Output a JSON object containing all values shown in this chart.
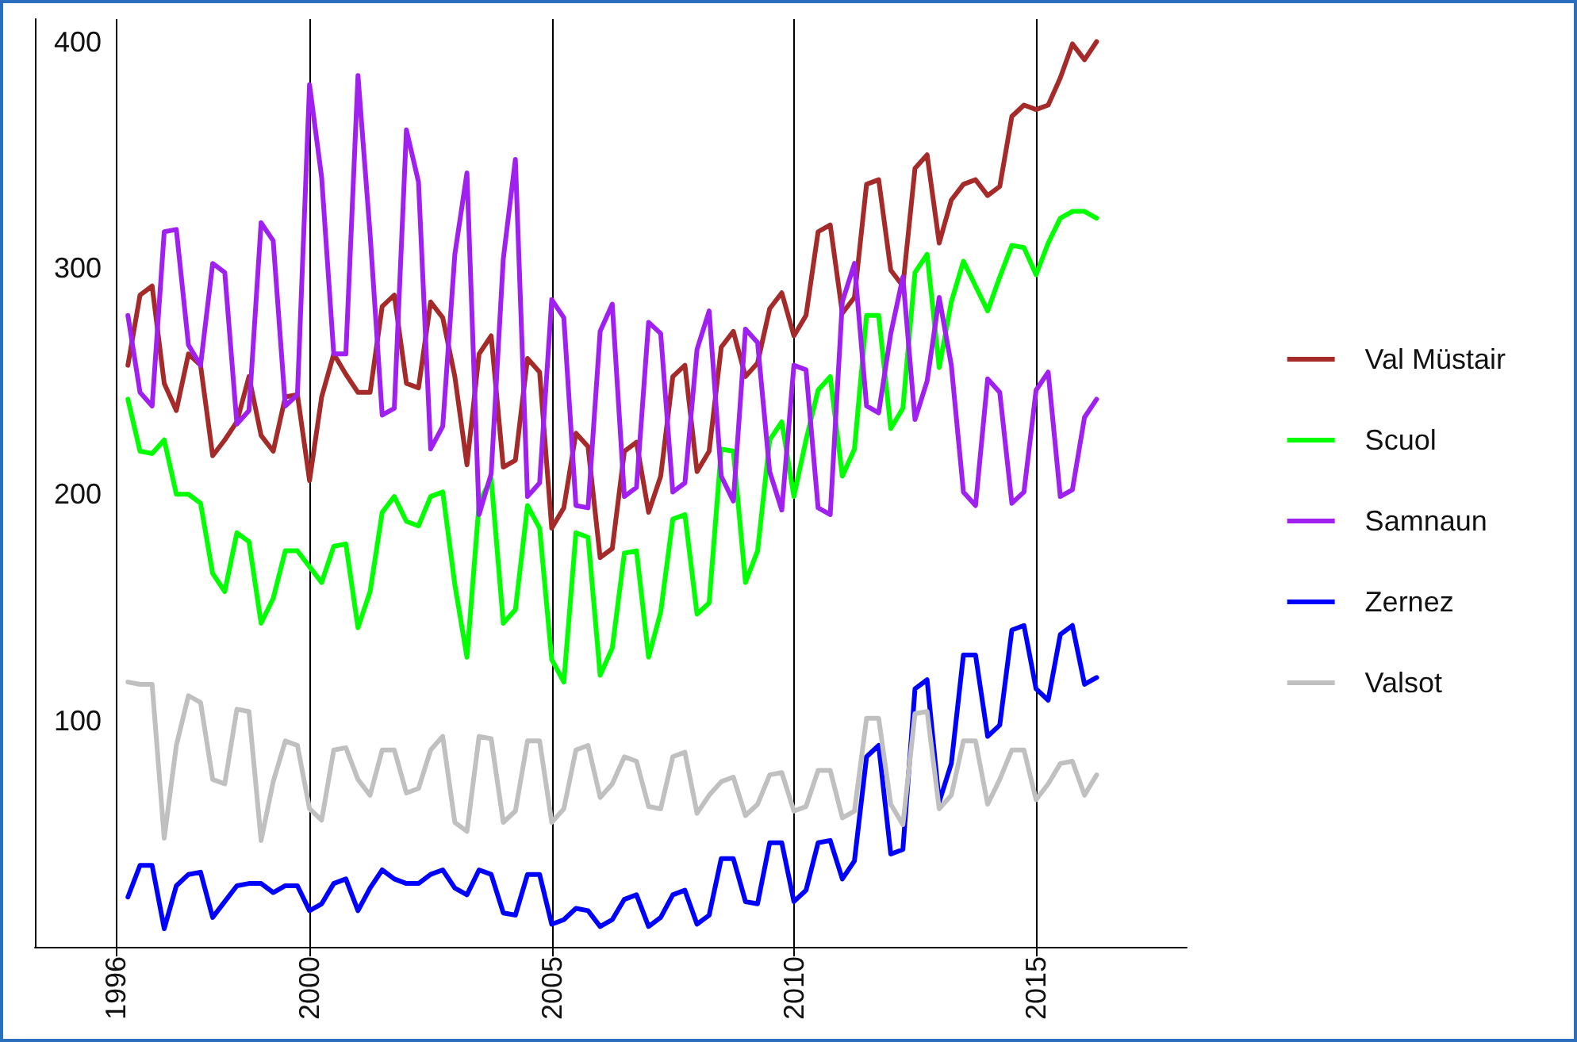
{
  "chart_data": {
    "type": "line",
    "x": [
      1996.25,
      1996.5,
      1996.75,
      1997,
      1997.25,
      1997.5,
      1997.75,
      1998,
      1998.25,
      1998.5,
      1998.75,
      1999,
      1999.25,
      1999.5,
      1999.75,
      2000,
      2000.25,
      2000.5,
      2000.75,
      2001,
      2001.25,
      2001.5,
      2001.75,
      2002,
      2002.25,
      2002.5,
      2002.75,
      2003,
      2003.25,
      2003.5,
      2003.75,
      2004,
      2004.25,
      2004.5,
      2004.75,
      2005,
      2005.25,
      2005.5,
      2005.75,
      2006,
      2006.25,
      2006.5,
      2006.75,
      2007,
      2007.25,
      2007.5,
      2007.75,
      2008,
      2008.25,
      2008.5,
      2008.75,
      2009,
      2009.25,
      2009.5,
      2009.75,
      2010,
      2010.25,
      2010.5,
      2010.75,
      2011,
      2011.25,
      2011.5,
      2011.75,
      2012,
      2012.25,
      2012.5,
      2012.75,
      2013,
      2013.25,
      2013.5,
      2013.75,
      2014,
      2014.25,
      2014.5,
      2014.75,
      2015,
      2015.25,
      2015.5,
      2015.75,
      2016,
      2016.25
    ],
    "series": [
      {
        "name": "Val Müstair",
        "color": "#a52a2a",
        "values": [
          257,
          288,
          292,
          249,
          237,
          262,
          257,
          217,
          224,
          232,
          252,
          226,
          219,
          243,
          244,
          206,
          243,
          262,
          253,
          245,
          245,
          283,
          288,
          249,
          247,
          285,
          278,
          252,
          213,
          262,
          270,
          212,
          215,
          260,
          254,
          185,
          194,
          227,
          221,
          172,
          176,
          219,
          223,
          192,
          208,
          252,
          257,
          210,
          219,
          265,
          272,
          252,
          258,
          282,
          289,
          270,
          279,
          316,
          319,
          280,
          287,
          337,
          339,
          299,
          292,
          344,
          350,
          311,
          330,
          337,
          339,
          332,
          336,
          367,
          372,
          370,
          372,
          384,
          399,
          392,
          400
        ]
      },
      {
        "name": "Scuol",
        "color": "#00ff00",
        "values": [
          242,
          219,
          218,
          224,
          200,
          200,
          196,
          165,
          157,
          183,
          179,
          143,
          154,
          175,
          175,
          168,
          161,
          177,
          178,
          141,
          157,
          192,
          199,
          188,
          186,
          199,
          201,
          160,
          128,
          196,
          207,
          143,
          149,
          195,
          185,
          127,
          117,
          183,
          181,
          120,
          132,
          174,
          175,
          128,
          148,
          189,
          191,
          147,
          152,
          220,
          219,
          161,
          175,
          224,
          232,
          199,
          224,
          246,
          252,
          208,
          220,
          279,
          279,
          229,
          238,
          298,
          306,
          256,
          285,
          303,
          292,
          281,
          296,
          310,
          309,
          297,
          311,
          322,
          325,
          325,
          322
        ]
      },
      {
        "name": "Samnaun",
        "color": "#a020f0",
        "values": [
          279,
          245,
          239,
          316,
          317,
          266,
          257,
          302,
          298,
          231,
          237,
          320,
          312,
          239,
          244,
          381,
          340,
          262,
          262,
          385,
          315,
          235,
          238,
          361,
          338,
          220,
          230,
          306,
          342,
          191,
          209,
          304,
          348,
          199,
          205,
          286,
          278,
          195,
          194,
          272,
          284,
          199,
          203,
          276,
          271,
          201,
          205,
          264,
          281,
          208,
          197,
          273,
          267,
          210,
          193,
          257,
          255,
          194,
          191,
          285,
          302,
          239,
          236,
          271,
          296,
          233,
          250,
          287,
          257,
          201,
          195,
          251,
          245,
          196,
          201,
          246,
          254,
          199,
          202,
          234,
          242
        ]
      },
      {
        "name": "Zernez",
        "color": "#0000ff",
        "values": [
          22,
          36,
          36,
          8,
          27,
          32,
          33,
          13,
          20,
          27,
          28,
          28,
          24,
          27,
          27,
          16,
          19,
          28,
          30,
          16,
          26,
          34,
          30,
          28,
          28,
          32,
          34,
          26,
          23,
          34,
          32,
          15,
          14,
          32,
          32,
          10,
          12,
          17,
          16,
          9,
          12,
          21,
          23,
          9,
          13,
          23,
          25,
          10,
          14,
          39,
          39,
          20,
          19,
          46,
          46,
          20,
          25,
          46,
          47,
          30,
          38,
          84,
          89,
          41,
          43,
          114,
          118,
          64,
          81,
          129,
          129,
          93,
          98,
          140,
          142,
          114,
          109,
          138,
          142,
          116,
          119
        ]
      },
      {
        "name": "Valsot",
        "color": "#c0c0c0",
        "values": [
          117,
          116,
          116,
          48,
          89,
          111,
          108,
          74,
          72,
          105,
          104,
          47,
          73,
          91,
          89,
          61,
          56,
          87,
          88,
          74,
          67,
          87,
          87,
          68,
          70,
          87,
          93,
          55,
          51,
          93,
          92,
          55,
          60,
          91,
          91,
          55,
          61,
          87,
          89,
          66,
          72,
          84,
          82,
          62,
          61,
          84,
          86,
          59,
          67,
          73,
          75,
          58,
          63,
          76,
          77,
          60,
          62,
          78,
          78,
          57,
          60,
          101,
          101,
          63,
          54,
          103,
          104,
          61,
          67,
          91,
          91,
          63,
          74,
          87,
          87,
          65,
          72,
          81,
          82,
          67,
          76
        ]
      }
    ],
    "xlim": [
      1994.33,
      2018.11
    ],
    "xticks": [
      1996,
      2000,
      2005,
      2010,
      2015
    ],
    "ylim": [
      0,
      410
    ],
    "yticks": [
      100,
      200,
      300,
      400
    ],
    "grid": "x",
    "legend": "right",
    "line_style": "solid"
  }
}
